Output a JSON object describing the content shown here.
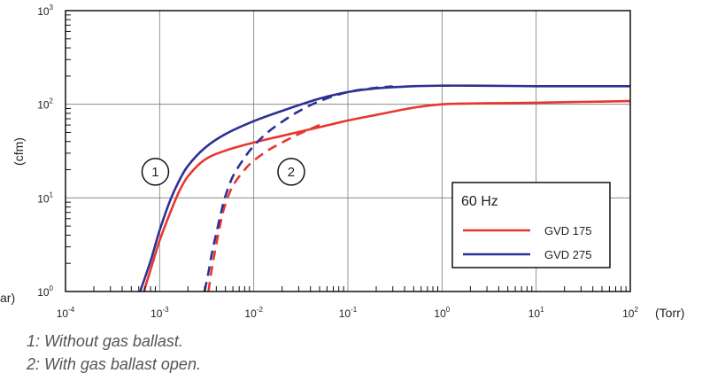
{
  "chart_data": {
    "type": "line",
    "x_scale": "log",
    "y_scale": "log",
    "xlim": [
      0.0001,
      100
    ],
    "ylim": [
      1,
      1000
    ],
    "x_unit_label": "(Torr)",
    "y_label": "(cfm)",
    "left_edge_fragment": "ar)",
    "x_ticks": [
      {
        "base": "10",
        "exp": "-4",
        "value": 0.0001
      },
      {
        "base": "10",
        "exp": "-3",
        "value": 0.001
      },
      {
        "base": "10",
        "exp": "-2",
        "value": 0.01
      },
      {
        "base": "10",
        "exp": "-1",
        "value": 0.1
      },
      {
        "base": "10",
        "exp": "0",
        "value": 1
      },
      {
        "base": "10",
        "exp": "1",
        "value": 10
      },
      {
        "base": "10",
        "exp": "2",
        "value": 100
      }
    ],
    "y_ticks": [
      {
        "base": "10",
        "exp": "0",
        "value": 1
      },
      {
        "base": "10",
        "exp": "1",
        "value": 10
      },
      {
        "base": "10",
        "exp": "2",
        "value": 100
      },
      {
        "base": "10",
        "exp": "3",
        "value": 1000
      }
    ],
    "grid": true,
    "legend": {
      "title": "60 Hz",
      "position": "lower-right",
      "entries": [
        {
          "label": "GVD 175",
          "color": "#e8372f"
        },
        {
          "label": "GVD 275",
          "color": "#2e3192"
        }
      ]
    },
    "series": [
      {
        "name": "GVD 175",
        "style": "solid",
        "color": "#e8372f",
        "x": [
          0.00068,
          0.0008,
          0.001,
          0.0013,
          0.0016,
          0.002,
          0.003,
          0.005,
          0.01,
          0.02,
          0.05,
          0.1,
          0.2,
          0.5,
          1,
          2,
          5,
          10,
          30,
          100
        ],
        "y": [
          1,
          1.7,
          3.5,
          7,
          11.5,
          17,
          25.5,
          32,
          39,
          46,
          57,
          67,
          77,
          92,
          100,
          102,
          103,
          104,
          106,
          108
        ]
      },
      {
        "name": "GVD 275",
        "style": "solid",
        "color": "#2e3192",
        "x": [
          0.00062,
          0.0008,
          0.001,
          0.0013,
          0.0016,
          0.002,
          0.003,
          0.005,
          0.01,
          0.02,
          0.05,
          0.1,
          0.2,
          0.5,
          1,
          2,
          5,
          10,
          30,
          100
        ],
        "y": [
          1,
          2.1,
          4.5,
          9.5,
          15,
          22,
          34,
          48,
          66,
          85,
          115,
          135,
          148,
          156,
          158,
          158,
          157,
          156,
          156,
          156
        ]
      },
      {
        "name": "GVD 175",
        "style": "dashed",
        "color": "#e8372f",
        "x": [
          0.0033,
          0.0036,
          0.004,
          0.0045,
          0.005,
          0.006,
          0.008,
          0.01,
          0.014,
          0.02,
          0.03,
          0.05
        ],
        "y": [
          1,
          1.8,
          3.2,
          5.8,
          8.6,
          13.5,
          20,
          25,
          32,
          39,
          48,
          60
        ]
      },
      {
        "name": "GVD 275",
        "style": "dashed",
        "color": "#2e3192",
        "x": [
          0.003,
          0.0033,
          0.0036,
          0.004,
          0.0045,
          0.005,
          0.006,
          0.008,
          0.01,
          0.014,
          0.02,
          0.03,
          0.05,
          0.1,
          0.2,
          0.3
        ],
        "y": [
          1,
          1.6,
          2.6,
          4.2,
          7,
          10.5,
          17,
          27,
          36,
          50,
          65,
          84,
          108,
          135,
          150,
          155
        ]
      }
    ],
    "annotations": [
      {
        "label": "1",
        "x": 0.0009,
        "y": 19
      },
      {
        "label": "2",
        "x": 0.025,
        "y": 19
      }
    ]
  },
  "notes": {
    "note1": "1: Without gas ballast.",
    "note2": "2: With gas ballast open."
  }
}
